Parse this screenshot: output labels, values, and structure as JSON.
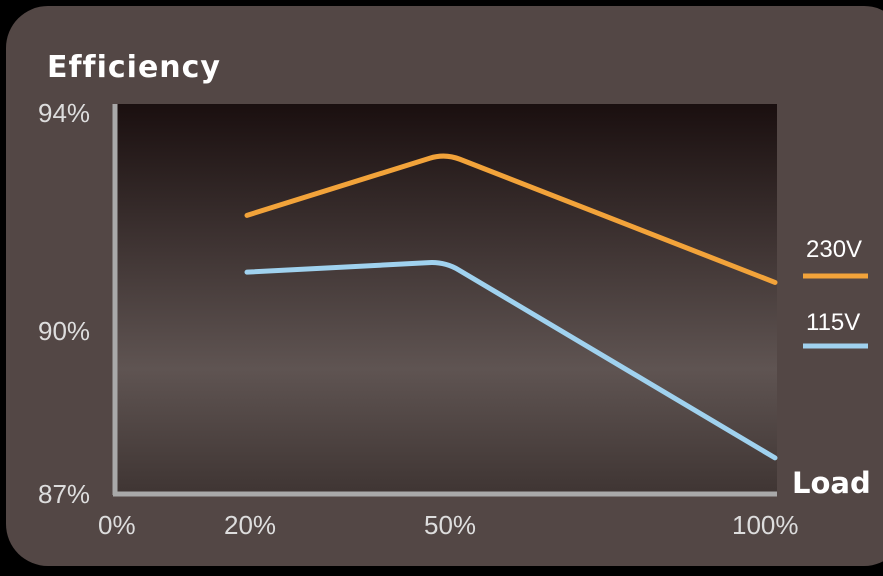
{
  "chart_data": {
    "type": "line",
    "title": "Efficiency",
    "xlabel": "Load",
    "ylabel": "",
    "x_ticks": [
      "0%",
      "20%",
      "50%",
      "100%"
    ],
    "y_ticks": [
      "94%",
      "90%",
      "87%"
    ],
    "xlim": [
      0,
      100
    ],
    "ylim": [
      87,
      94
    ],
    "legend_position": "right",
    "grid": false,
    "series": [
      {
        "name": "230V",
        "color": "#f2a33a",
        "points": [
          [
            20,
            92.4
          ],
          [
            50,
            93.6
          ],
          [
            100,
            91.1
          ]
        ]
      },
      {
        "name": "115V",
        "color": "#a0d2ef",
        "points": [
          [
            20,
            91.3
          ],
          [
            50,
            91.5
          ],
          [
            100,
            87.7
          ]
        ]
      }
    ]
  }
}
